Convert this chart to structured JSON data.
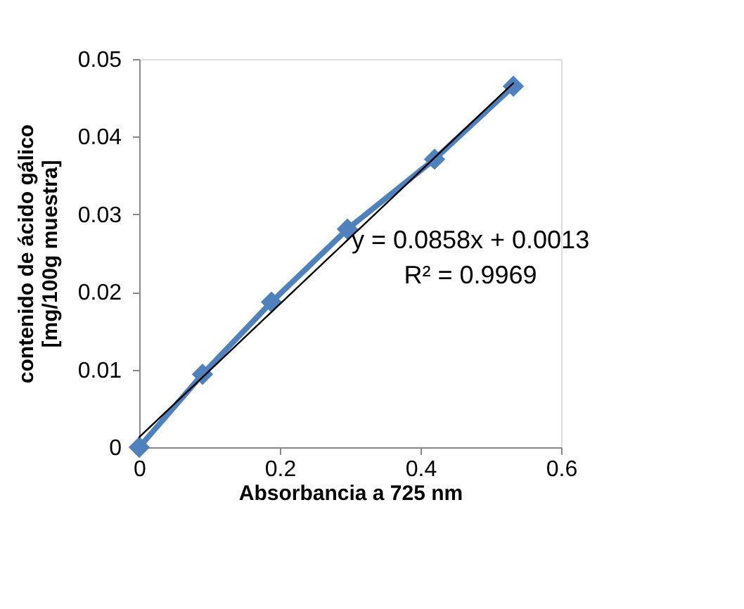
{
  "chart_data": {
    "type": "line",
    "xlabel": "Absorbancia a 725 nm",
    "ylabel": "contenido de ácido gálico\n[mg/100g muestra]",
    "x": [
      0,
      0.09,
      0.188,
      0.296,
      0.42,
      0.532
    ],
    "series": [
      {
        "color": "#4f81bd",
        "values": [
          0,
          0.0094,
          0.0187,
          0.0281,
          0.0371,
          0.0465
        ],
        "marker": "diamond"
      },
      {
        "type": "line",
        "color": "#000000",
        "x": [
          0,
          0.532
        ],
        "values": [
          0.0013,
          0.0469
        ],
        "marker": "none"
      }
    ],
    "annotations": [
      "y = 0.0858x + 0.0013",
      "R² = 0.9969"
    ],
    "xlim": [
      0,
      0.6
    ],
    "xticks": [
      0,
      0.2,
      0.4,
      0.6
    ],
    "ylim": [
      0,
      0.05
    ],
    "yticks": [
      0,
      0.01,
      0.02,
      0.03,
      0.04,
      0.05
    ],
    "grid": false
  }
}
